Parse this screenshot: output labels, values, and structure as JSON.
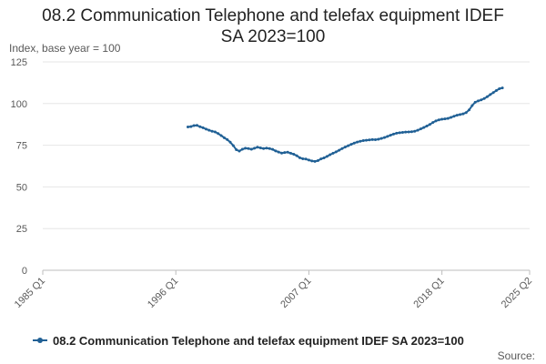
{
  "title_line1": "08.2 Communication Telephone and telefax equipment IDEF",
  "title_line2": "SA 2023=100",
  "source_label": "Source:",
  "chart_data": {
    "type": "line",
    "title": "08.2 Communication Telephone and telefax equipment IDEF SA 2023=100",
    "ylabel": "Index, base year = 100",
    "xlabel": "",
    "ylim": [
      0,
      125
    ],
    "yticks": [
      0,
      25,
      50,
      75,
      100,
      125
    ],
    "x_range": [
      "1985 Q1",
      "2025 Q2"
    ],
    "x_ticks": [
      "1985 Q1",
      "1996 Q1",
      "2007 Q1",
      "2018 Q1",
      "2025 Q2"
    ],
    "grid": true,
    "legend": "bottom",
    "color": "#206095",
    "series": [
      {
        "name": "08.2 Communication Telephone and telefax equipment IDEF SA 2023=100",
        "start": "1997 Q1",
        "values": [
          86.0,
          86.2,
          86.8,
          86.9,
          86.1,
          85.5,
          84.7,
          84.0,
          83.4,
          83.0,
          82.0,
          80.8,
          79.5,
          78.4,
          76.8,
          74.8,
          72.3,
          71.5,
          72.6,
          73.2,
          73.0,
          72.6,
          73.2,
          73.8,
          73.4,
          73.0,
          73.3,
          73.0,
          72.5,
          71.6,
          70.9,
          70.3,
          70.6,
          70.8,
          70.2,
          69.6,
          68.7,
          67.5,
          66.9,
          66.7,
          66.1,
          65.6,
          65.3,
          65.8,
          66.8,
          67.4,
          68.3,
          69.3,
          70.2,
          71.0,
          72.0,
          73.0,
          73.9,
          74.7,
          75.5,
          76.3,
          76.9,
          77.4,
          77.8,
          78.0,
          78.2,
          78.4,
          78.3,
          78.6,
          79.1,
          79.6,
          80.3,
          81.0,
          81.7,
          82.2,
          82.5,
          82.7,
          82.9,
          83.0,
          83.1,
          83.4,
          84.0,
          84.8,
          85.6,
          86.5,
          87.5,
          88.6,
          89.6,
          90.2,
          90.6,
          90.8,
          91.1,
          91.7,
          92.4,
          93.0,
          93.4,
          93.8,
          94.6,
          96.2,
          98.8,
          100.8,
          101.6,
          102.2,
          103.0,
          104.1,
          105.4,
          106.6,
          107.8,
          108.9,
          109.4
        ]
      }
    ]
  }
}
